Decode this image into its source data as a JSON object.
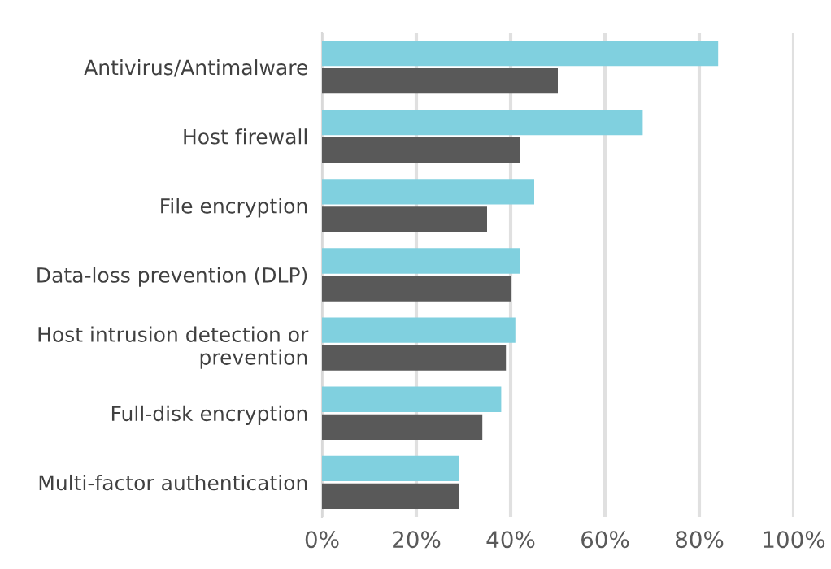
{
  "chart_data": {
    "type": "bar",
    "orientation": "horizontal",
    "categories": [
      "Antivirus/Antimalware",
      "Host firewall",
      "File encryption",
      "Data-loss prevention (DLP)",
      "Host intrusion detection or prevention",
      "Full-disk encryption",
      "Multi-factor authentication"
    ],
    "series": [
      {
        "color": "#80d0df",
        "values": [
          84,
          68,
          45,
          42,
          41,
          38,
          29
        ]
      },
      {
        "color": "#595959",
        "values": [
          50,
          42,
          35,
          40,
          39,
          34,
          29
        ]
      }
    ],
    "xlim": [
      0,
      100
    ],
    "xticks": [
      {
        "value": 0,
        "label": "0%"
      },
      {
        "value": 20,
        "label": "20%"
      },
      {
        "value": 40,
        "label": "40%"
      },
      {
        "value": 60,
        "label": "60%"
      },
      {
        "value": 80,
        "label": "80%"
      },
      {
        "value": 100,
        "label": "100%"
      }
    ],
    "grid": "x",
    "legend": false
  }
}
